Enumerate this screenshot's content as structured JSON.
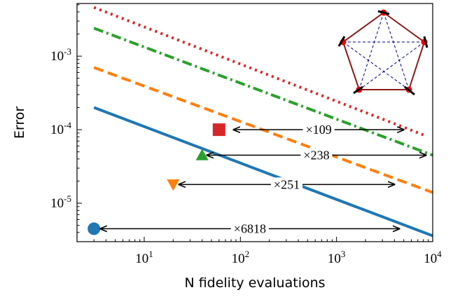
{
  "chart_data": {
    "type": "line",
    "xlabel": "N fidelity evaluations",
    "ylabel": "Error",
    "xscale": "log",
    "yscale": "log",
    "xlim": [
      2,
      10000
    ],
    "ylim": [
      3e-06,
      0.0052
    ],
    "xticks": [
      {
        "value": 10,
        "label": "10",
        "exp": "1"
      },
      {
        "value": 100,
        "label": "10",
        "exp": "2"
      },
      {
        "value": 1000,
        "label": "10",
        "exp": "3"
      },
      {
        "value": 10000,
        "label": "10",
        "exp": "4"
      }
    ],
    "yticks": [
      {
        "value": 1e-05,
        "label": "10",
        "exp": "-5"
      },
      {
        "value": 0.0001,
        "label": "10",
        "exp": "-4"
      },
      {
        "value": 0.001,
        "label": "10",
        "exp": "-3"
      }
    ],
    "series": [
      {
        "style": "solid",
        "color": "#1f77b4",
        "x": [
          3,
          10000
        ],
        "values": [
          0.0002,
          3.6e-06
        ]
      },
      {
        "style": "dashed",
        "color": "#ff7f0e",
        "x": [
          3,
          10000
        ],
        "values": [
          0.0007,
          1.4e-05
        ]
      },
      {
        "style": "dashdot",
        "color": "#2ca02c",
        "x": [
          3,
          10000
        ],
        "values": [
          0.0024,
          4.5e-05
        ]
      },
      {
        "style": "dotted",
        "color": "#d62728",
        "x": [
          3,
          8000
        ],
        "values": [
          0.0046,
          8.5e-05
        ]
      }
    ],
    "markers": [
      {
        "shape": "circle",
        "color": "#1f77b4",
        "x": 3,
        "value": 4.5e-06
      },
      {
        "shape": "triangle-down",
        "color": "#ff7f0e",
        "x": 20,
        "value": 1.8e-05
      },
      {
        "shape": "triangle-up",
        "color": "#2ca02c",
        "x": 40,
        "value": 4.5e-05
      },
      {
        "shape": "square",
        "color": "#d62728",
        "x": 60,
        "value": 0.0001
      }
    ],
    "annotations": [
      {
        "text": "×109",
        "x_start": 85,
        "x_end": 5000,
        "y": 0.0001
      },
      {
        "text": "×238",
        "x_start": 45,
        "x_end": 8500,
        "y": 4.5e-05
      },
      {
        "text": "×251",
        "x_start": 23,
        "x_end": 4000,
        "y": 1.8e-05
      },
      {
        "text": "×6818",
        "x_start": 3.5,
        "x_end": 4500,
        "y": 4.5e-06
      }
    ]
  }
}
